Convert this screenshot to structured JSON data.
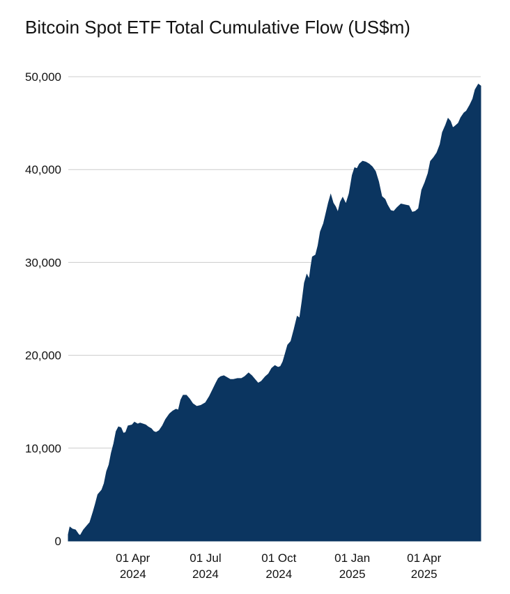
{
  "title": "Bitcoin Spot ETF Total Cumulative Flow (US$m)",
  "chart_data": {
    "type": "area",
    "title": "Bitcoin Spot ETF Total Cumulative Flow (US$m)",
    "xlabel": "",
    "ylabel": "",
    "color": "#0b3560",
    "grid": true,
    "ylim": [
      0,
      50000
    ],
    "xlim": [
      "2024-01-11",
      "2025-06-11"
    ],
    "y_ticks": [
      {
        "value": 0,
        "label": "0"
      },
      {
        "value": 10000,
        "label": "10,000"
      },
      {
        "value": 20000,
        "label": "20,000"
      },
      {
        "value": 30000,
        "label": "30,000"
      },
      {
        "value": 40000,
        "label": "40,000"
      },
      {
        "value": 50000,
        "label": "50,000"
      }
    ],
    "x_ticks": [
      {
        "date": "2024-04-01",
        "line1": "01 Apr",
        "line2": "2024"
      },
      {
        "date": "2024-07-01",
        "line1": "01 Jul",
        "line2": "2024"
      },
      {
        "date": "2024-10-01",
        "line1": "01 Oct",
        "line2": "2024"
      },
      {
        "date": "2025-01-01",
        "line1": "01 Jan",
        "line2": "2025"
      },
      {
        "date": "2025-04-01",
        "line1": "01 Apr",
        "line2": "2025"
      }
    ],
    "series": [
      {
        "points": [
          [
            "2024-01-11",
            700
          ],
          [
            "2024-01-13",
            1500
          ],
          [
            "2024-01-16",
            1300
          ],
          [
            "2024-01-20",
            1200
          ],
          [
            "2024-01-24",
            700
          ],
          [
            "2024-01-26",
            600
          ],
          [
            "2024-01-30",
            1200
          ],
          [
            "2024-02-03",
            1600
          ],
          [
            "2024-02-07",
            2000
          ],
          [
            "2024-02-11",
            3100
          ],
          [
            "2024-02-14",
            4000
          ],
          [
            "2024-02-17",
            5000
          ],
          [
            "2024-02-22",
            5500
          ],
          [
            "2024-02-25",
            6200
          ],
          [
            "2024-02-28",
            7500
          ],
          [
            "2024-03-02",
            8200
          ],
          [
            "2024-03-05",
            9500
          ],
          [
            "2024-03-08",
            10500
          ],
          [
            "2024-03-11",
            11800
          ],
          [
            "2024-03-14",
            12300
          ],
          [
            "2024-03-17",
            12200
          ],
          [
            "2024-03-20",
            11600
          ],
          [
            "2024-03-23",
            11700
          ],
          [
            "2024-03-26",
            12400
          ],
          [
            "2024-03-31",
            12500
          ],
          [
            "2024-04-03",
            12800
          ],
          [
            "2024-04-07",
            12600
          ],
          [
            "2024-04-10",
            12700
          ],
          [
            "2024-04-14",
            12600
          ],
          [
            "2024-04-17",
            12500
          ],
          [
            "2024-04-20",
            12300
          ],
          [
            "2024-04-24",
            12100
          ],
          [
            "2024-04-27",
            11800
          ],
          [
            "2024-04-30",
            11700
          ],
          [
            "2024-05-04",
            11900
          ],
          [
            "2024-05-08",
            12400
          ],
          [
            "2024-05-12",
            13100
          ],
          [
            "2024-05-17",
            13700
          ],
          [
            "2024-05-21",
            14000
          ],
          [
            "2024-05-25",
            14200
          ],
          [
            "2024-05-28",
            14100
          ],
          [
            "2024-05-31",
            15200
          ],
          [
            "2024-06-03",
            15700
          ],
          [
            "2024-06-07",
            15700
          ],
          [
            "2024-06-11",
            15300
          ],
          [
            "2024-06-15",
            14800
          ],
          [
            "2024-06-20",
            14500
          ],
          [
            "2024-06-25",
            14600
          ],
          [
            "2024-07-01",
            14900
          ],
          [
            "2024-07-06",
            15600
          ],
          [
            "2024-07-10",
            16300
          ],
          [
            "2024-07-14",
            17000
          ],
          [
            "2024-07-17",
            17500
          ],
          [
            "2024-07-20",
            17700
          ],
          [
            "2024-07-24",
            17800
          ],
          [
            "2024-07-28",
            17600
          ],
          [
            "2024-08-01",
            17400
          ],
          [
            "2024-08-05",
            17400
          ],
          [
            "2024-08-10",
            17500
          ],
          [
            "2024-08-15",
            17500
          ],
          [
            "2024-08-19",
            17700
          ],
          [
            "2024-08-24",
            18100
          ],
          [
            "2024-08-28",
            17800
          ],
          [
            "2024-09-01",
            17400
          ],
          [
            "2024-09-05",
            17000
          ],
          [
            "2024-09-09",
            17200
          ],
          [
            "2024-09-14",
            17700
          ],
          [
            "2024-09-18",
            18000
          ],
          [
            "2024-09-22",
            18600
          ],
          [
            "2024-09-26",
            18900
          ],
          [
            "2024-09-30",
            18700
          ],
          [
            "2024-10-03",
            18800
          ],
          [
            "2024-10-06",
            19300
          ],
          [
            "2024-10-09",
            20200
          ],
          [
            "2024-10-12",
            21100
          ],
          [
            "2024-10-16",
            21500
          ],
          [
            "2024-10-20",
            22800
          ],
          [
            "2024-10-24",
            24200
          ],
          [
            "2024-10-27",
            24000
          ],
          [
            "2024-10-30",
            25800
          ],
          [
            "2024-11-02",
            27800
          ],
          [
            "2024-11-05",
            28700
          ],
          [
            "2024-11-08",
            28200
          ],
          [
            "2024-11-10",
            29500
          ],
          [
            "2024-11-12",
            30600
          ],
          [
            "2024-11-16",
            30800
          ],
          [
            "2024-11-19",
            31800
          ],
          [
            "2024-11-22",
            33300
          ],
          [
            "2024-11-26",
            34200
          ],
          [
            "2024-11-29",
            35300
          ],
          [
            "2024-12-02",
            36400
          ],
          [
            "2024-12-05",
            37300
          ],
          [
            "2024-12-08",
            36400
          ],
          [
            "2024-12-11",
            36000
          ],
          [
            "2024-12-14",
            35400
          ],
          [
            "2024-12-17",
            36500
          ],
          [
            "2024-12-20",
            37000
          ],
          [
            "2024-12-24",
            36300
          ],
          [
            "2024-12-28",
            37400
          ],
          [
            "2025-01-01",
            39400
          ],
          [
            "2025-01-04",
            40200
          ],
          [
            "2025-01-07",
            40100
          ],
          [
            "2025-01-10",
            40600
          ],
          [
            "2025-01-14",
            40900
          ],
          [
            "2025-01-18",
            40800
          ],
          [
            "2025-01-22",
            40600
          ],
          [
            "2025-01-26",
            40300
          ],
          [
            "2025-01-30",
            39800
          ],
          [
            "2025-02-03",
            38700
          ],
          [
            "2025-02-07",
            37100
          ],
          [
            "2025-02-11",
            36800
          ],
          [
            "2025-02-14",
            36200
          ],
          [
            "2025-02-18",
            35600
          ],
          [
            "2025-02-22",
            35500
          ],
          [
            "2025-02-26",
            35900
          ],
          [
            "2025-03-03",
            36300
          ],
          [
            "2025-03-08",
            36200
          ],
          [
            "2025-03-13",
            36100
          ],
          [
            "2025-03-17",
            35400
          ],
          [
            "2025-03-21",
            35500
          ],
          [
            "2025-03-25",
            35800
          ],
          [
            "2025-03-29",
            37800
          ],
          [
            "2025-04-02",
            38600
          ],
          [
            "2025-04-06",
            39600
          ],
          [
            "2025-04-09",
            40900
          ],
          [
            "2025-04-13",
            41300
          ],
          [
            "2025-04-17",
            41800
          ],
          [
            "2025-04-21",
            42700
          ],
          [
            "2025-04-24",
            44000
          ],
          [
            "2025-04-28",
            44800
          ],
          [
            "2025-05-01",
            45500
          ],
          [
            "2025-05-04",
            45200
          ],
          [
            "2025-05-07",
            44500
          ],
          [
            "2025-05-10",
            44700
          ],
          [
            "2025-05-14",
            45000
          ],
          [
            "2025-05-17",
            45600
          ],
          [
            "2025-05-21",
            46100
          ],
          [
            "2025-05-24",
            46300
          ],
          [
            "2025-05-28",
            46900
          ],
          [
            "2025-06-01",
            47600
          ],
          [
            "2025-06-04",
            48600
          ],
          [
            "2025-06-08",
            49200
          ],
          [
            "2025-06-11",
            49000
          ]
        ]
      }
    ]
  }
}
